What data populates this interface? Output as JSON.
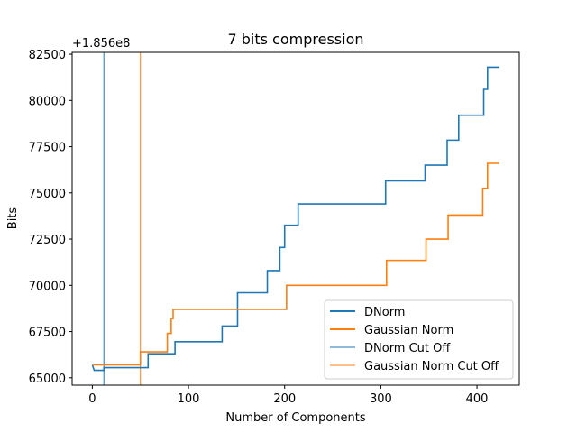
{
  "chart_data": {
    "type": "line",
    "title": "7 bits compression",
    "xlabel": "Number of Components",
    "ylabel": "Bits",
    "offset_text": "+1.856e8",
    "xlim": [
      -21,
      444
    ],
    "ylim": [
      64600,
      82600
    ],
    "xticks": [
      0,
      100,
      200,
      300,
      400
    ],
    "xtick_labels": [
      "0",
      "100",
      "200",
      "300",
      "400"
    ],
    "yticks": [
      65000,
      67500,
      70000,
      72500,
      75000,
      77500,
      80000,
      82500
    ],
    "ytick_labels": [
      "65000",
      "67500",
      "70000",
      "72500",
      "75000",
      "77500",
      "80000",
      "82500"
    ],
    "grid": false,
    "legend_position": "lower-right",
    "series": [
      {
        "name": "DNorm",
        "color": "#1f77b4",
        "style": "step",
        "points": [
          [
            0,
            65700
          ],
          [
            2,
            65400
          ],
          [
            12,
            65400
          ],
          [
            12,
            65550
          ],
          [
            58,
            65550
          ],
          [
            58,
            66300
          ],
          [
            86,
            66300
          ],
          [
            86,
            66950
          ],
          [
            135,
            66950
          ],
          [
            135,
            67800
          ],
          [
            151,
            67800
          ],
          [
            151,
            69600
          ],
          [
            182,
            69600
          ],
          [
            182,
            70800
          ],
          [
            195,
            70800
          ],
          [
            195,
            72050
          ],
          [
            200,
            72050
          ],
          [
            200,
            73250
          ],
          [
            214,
            73250
          ],
          [
            214,
            74400
          ],
          [
            305,
            74400
          ],
          [
            305,
            75650
          ],
          [
            346,
            75650
          ],
          [
            346,
            76500
          ],
          [
            369,
            76500
          ],
          [
            369,
            77850
          ],
          [
            381,
            77850
          ],
          [
            381,
            79200
          ],
          [
            407,
            79200
          ],
          [
            407,
            80600
          ],
          [
            411,
            80600
          ],
          [
            411,
            81800
          ],
          [
            423,
            81800
          ]
        ]
      },
      {
        "name": "Gaussian Norm",
        "color": "#ff7f0e",
        "style": "step",
        "points": [
          [
            0,
            65700
          ],
          [
            50,
            65700
          ],
          [
            50,
            66400
          ],
          [
            78,
            66400
          ],
          [
            78,
            67400
          ],
          [
            82,
            67400
          ],
          [
            82,
            68200
          ],
          [
            84,
            68200
          ],
          [
            84,
            68700
          ],
          [
            202,
            68700
          ],
          [
            202,
            70000
          ],
          [
            306,
            70000
          ],
          [
            306,
            71350
          ],
          [
            347,
            71350
          ],
          [
            347,
            72500
          ],
          [
            370,
            72500
          ],
          [
            370,
            73800
          ],
          [
            406,
            73800
          ],
          [
            406,
            75250
          ],
          [
            411,
            75250
          ],
          [
            411,
            76600
          ],
          [
            423,
            76600
          ]
        ]
      }
    ],
    "vlines": [
      {
        "name": "DNorm Cut Off",
        "x": 12,
        "color": "#1f77b4"
      },
      {
        "name": "Gaussian Norm Cut Off",
        "x": 50,
        "color": "#ff7f0e"
      }
    ]
  }
}
